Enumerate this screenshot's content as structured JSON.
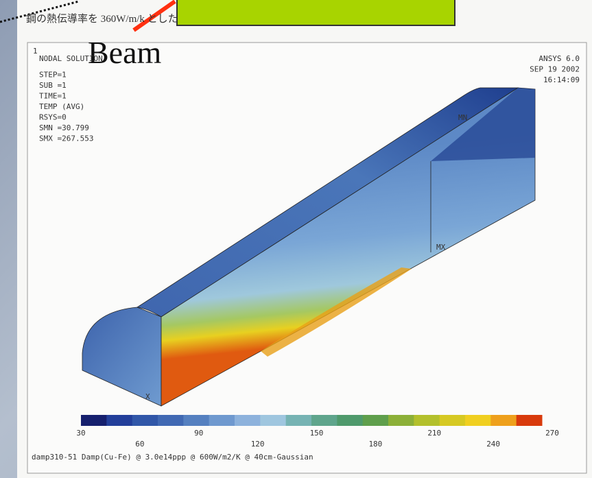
{
  "header": {
    "note": "鋼の熱伝導率を 360W/m/k とした",
    "callout": "Beam"
  },
  "plot": {
    "frame_number": "1",
    "left_info": [
      "NODAL SOLUTION",
      "STEP=1",
      "SUB =1",
      "TIME=1",
      "TEMP     (AVG)",
      "RSYS=0",
      "SMN =30.799",
      "SMX =267.553"
    ],
    "right_info": [
      "ANSYS 6.0",
      "SEP 19 2002",
      "16:14:09"
    ],
    "min_marker": "MN",
    "max_marker": "MX",
    "axis_label": "X"
  },
  "colorbar": {
    "lim": [
      30,
      270
    ],
    "ticks": [
      30,
      60,
      90,
      120,
      150,
      180,
      210,
      240,
      270
    ],
    "colors": [
      "#16206e",
      "#233f9a",
      "#3157a8",
      "#4169b3",
      "#5580c0",
      "#6f99cf",
      "#8db2dc",
      "#9fc6df",
      "#76b3b3",
      "#5fa58c",
      "#4f9a6c",
      "#5f9f4c",
      "#8cb038",
      "#b3c02c",
      "#d6c923",
      "#f0cf20",
      "#eea01c",
      "#d83a0c"
    ]
  },
  "footer": "damp310-51 Damp(Cu-Fe) @ 3.0e14ppp @ 600W/m2/K @ 40cm-Gaussian"
}
